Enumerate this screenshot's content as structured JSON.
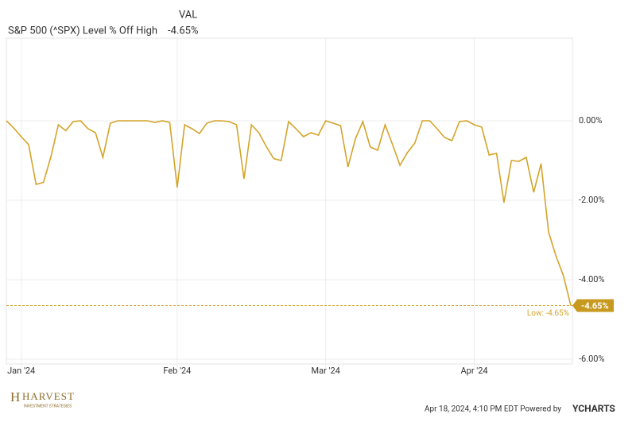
{
  "chart_data": {
    "type": "line",
    "header_label": "VAL",
    "title": "S&P 500 (^SPX) Level % Off High",
    "header_value": "-4.65%",
    "color": "#d4a42a",
    "categories": [
      null,
      null,
      "Jan '24",
      null,
      null,
      null,
      null,
      null,
      null,
      null,
      null,
      null,
      null,
      null,
      null,
      null,
      null,
      null,
      null,
      null,
      null,
      null,
      null,
      "Feb '24",
      null,
      null,
      null,
      null,
      null,
      null,
      null,
      null,
      null,
      null,
      null,
      null,
      null,
      null,
      null,
      null,
      null,
      null,
      null,
      "Mar '24",
      null,
      null,
      null,
      null,
      null,
      null,
      null,
      null,
      null,
      null,
      null,
      null,
      null,
      null,
      null,
      null,
      null,
      null,
      null,
      "Apr '24",
      null,
      null,
      null,
      null,
      null,
      null,
      null,
      null,
      null,
      null,
      null,
      null,
      null
    ],
    "values": [
      0,
      -0.18,
      -0.4,
      -0.6,
      -1.6,
      -1.55,
      -0.9,
      -0.1,
      -0.25,
      -0.02,
      0,
      -0.2,
      -0.3,
      -0.92,
      -0.06,
      0,
      0,
      0,
      0,
      0,
      -0.04,
      0,
      -0.04,
      -1.68,
      -0.1,
      -0.2,
      -0.32,
      -0.06,
      0,
      0,
      -0.02,
      -0.1,
      -1.46,
      -0.1,
      -0.3,
      -0.65,
      -0.95,
      -1.0,
      -0.02,
      -0.2,
      -0.4,
      -0.3,
      -0.36,
      0,
      -0.06,
      -0.12,
      -1.16,
      -0.45,
      -0.02,
      -0.66,
      -0.74,
      -0.1,
      -0.6,
      -1.12,
      -0.8,
      -0.56,
      0,
      0,
      -0.2,
      -0.42,
      -0.5,
      -0.02,
      0,
      -0.1,
      -0.16,
      -0.86,
      -0.82,
      -2.06,
      -1.0,
      -1.02,
      -0.92,
      -1.8,
      -1.08,
      -2.8,
      -3.4,
      -3.9,
      -4.65
    ],
    "end_label": "-4.65%",
    "low": {
      "value": -4.65,
      "label": "Low: -4.65%"
    },
    "ylim": [
      -6.12,
      2.08
    ],
    "yticks": [
      {
        "value": 0,
        "label": "0.00%"
      },
      {
        "value": -2,
        "label": "-2.00%"
      },
      {
        "value": -4,
        "label": "-4.00%"
      },
      {
        "value": -6,
        "label": "-6.00%"
      }
    ],
    "grid": true,
    "footer": {
      "timestamp": "Apr 18, 2024, 4:10 PM EDT Powered by",
      "brand": "YCHARTS",
      "logo": "HARVEST",
      "logo_sub": "INVESTMENT STRATEGIES"
    }
  }
}
